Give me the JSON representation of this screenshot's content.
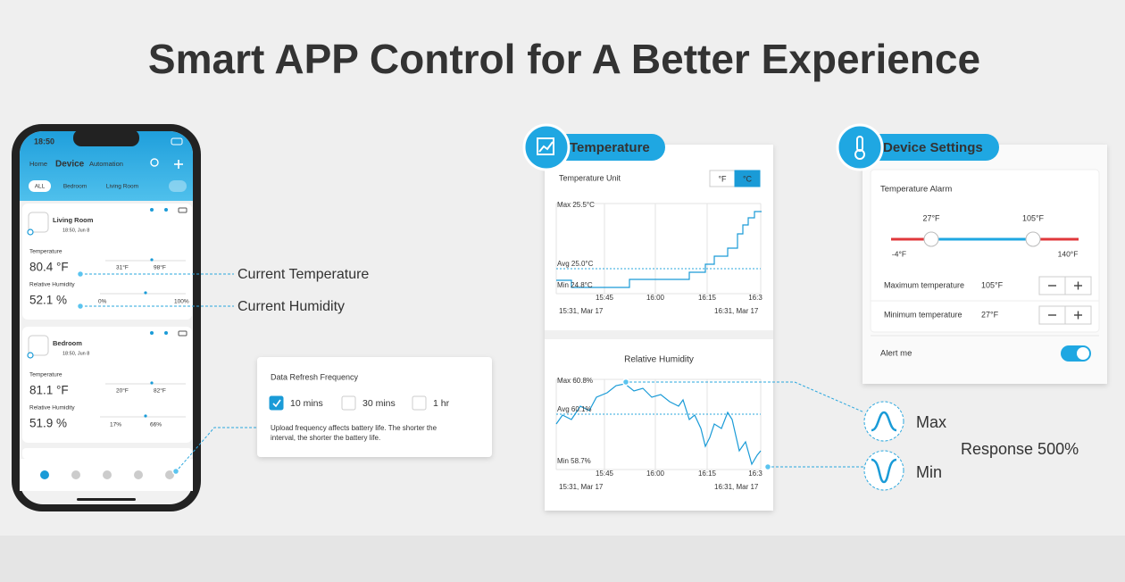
{
  "header": {
    "title": "Smart APP Control for A Better Experience"
  },
  "phone": {
    "status_time": "18:50",
    "tabs": [
      "Home",
      "Device",
      "Automation"
    ],
    "active_tab": 1,
    "filters": [
      "ALL",
      "Bedroom",
      "Living Room"
    ],
    "devices": [
      {
        "name": "Living Room",
        "time": "18:50, Jun 8",
        "temperature_label": "Temperature",
        "temperature": "80.4 °F",
        "temperature_range": [
          "31°F",
          "98°F"
        ],
        "humidity_label": "Relative Humidity",
        "humidity": "52.1 %",
        "humidity_range": [
          "0%",
          "100%"
        ]
      },
      {
        "name": "Bedroom",
        "time": "18:50, Jun 8",
        "temperature_label": "Temperature",
        "temperature": "81.1 °F",
        "temperature_range": [
          "20°F",
          "82°F"
        ],
        "humidity_label": "Relative Humidity",
        "humidity": "51.9 %",
        "humidity_range": [
          "17%",
          "66%"
        ]
      }
    ]
  },
  "callouts": [
    "Current Temperature",
    "Current Humidity"
  ],
  "refresh_panel": {
    "title": "Data Refresh Frequency",
    "options": [
      {
        "label": "10 mins",
        "checked": true
      },
      {
        "label": "30 mins",
        "checked": false
      },
      {
        "label": "1 hr",
        "checked": false
      }
    ],
    "note": [
      "Upload frequency affects battery life. The shorter the",
      "interval, the shorter the battery life."
    ]
  },
  "temperature_panel": {
    "badge": "Temperature",
    "unit_label": "Temperature Unit",
    "units": [
      "°F",
      "°C"
    ],
    "selected_unit": 1,
    "max": "Max 25.5°C",
    "avg": "Avg 25.0°C",
    "min": "Min 24.8°C",
    "x_labels": [
      "15:45",
      "16:00",
      "16:15",
      "16:3"
    ],
    "start": "15:31,  Mar 17",
    "end": "16:31,  Mar 17"
  },
  "humidity_panel": {
    "title": "Relative Humidity",
    "max": "Max 60.8%",
    "avg": "Avg 60.1%",
    "min": "Min 58.7%",
    "x_labels": [
      "15:45",
      "16:00",
      "16:15",
      "16:3"
    ],
    "start": "15:31,  Mar 17",
    "end": "16:31,  Mar 17"
  },
  "settings_panel": {
    "badge": "Device Settings",
    "alarm_title": "Temperature Alarm",
    "low": "27°F",
    "high": "105°F",
    "range_min": "-4°F",
    "range_max": "140°F",
    "max_label": "Maximum temperature",
    "max_value": "105°F",
    "min_label": "Minimum temperature",
    "min_value": "27°F",
    "alert": "Alert me",
    "alert_enabled": true
  },
  "legend": {
    "max": "Max",
    "min": "Min",
    "response": "Response 500%"
  }
}
